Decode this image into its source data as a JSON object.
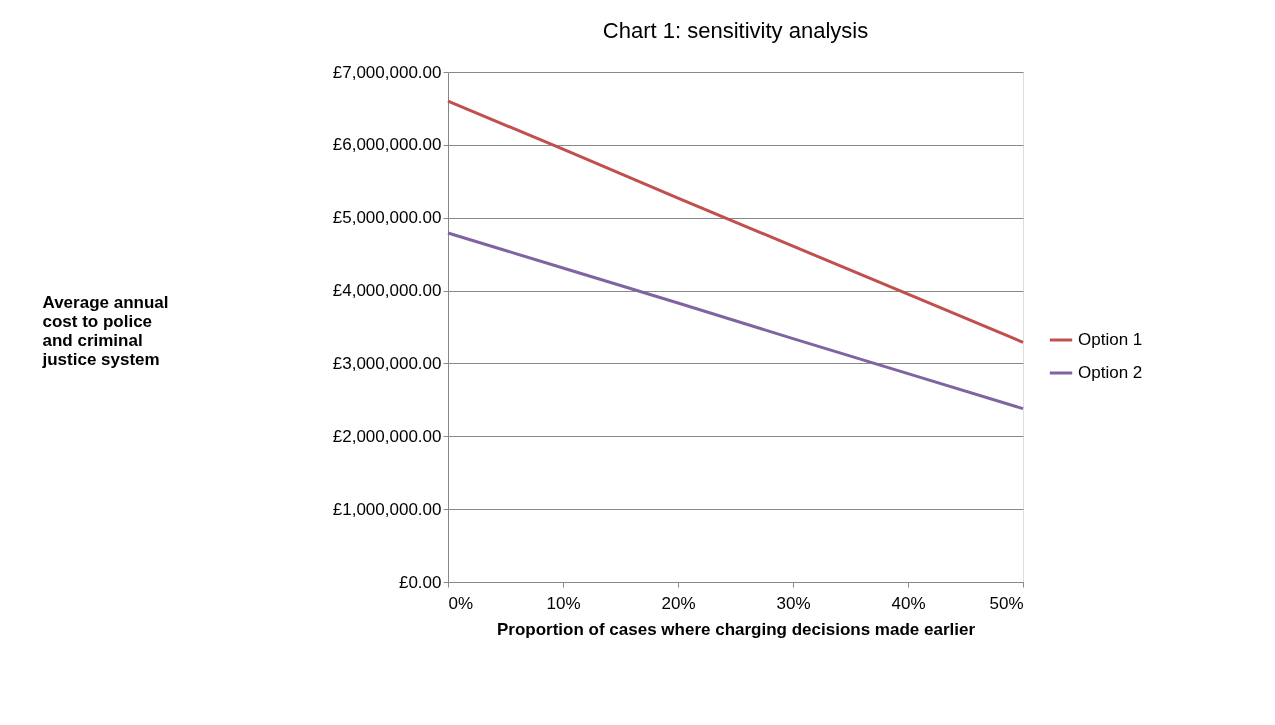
{
  "chart_data": {
    "type": "line",
    "title": "Chart 1: sensitivity analysis",
    "xlabel": "Proportion of cases where charging decisions made earlier",
    "ylabel": [
      "Average annual",
      "cost to police",
      "and criminal",
      "justice system"
    ],
    "categories": [
      "0%",
      "10%",
      "20%",
      "30%",
      "40%",
      "50%"
    ],
    "series": [
      {
        "name": "Option 1",
        "color": "#c0504d",
        "values": [
          6600000,
          5940000,
          5270000,
          4610000,
          3950000,
          3290000
        ]
      },
      {
        "name": "Option 2",
        "color": "#8064a2",
        "values": [
          4790000,
          4310000,
          3830000,
          3340000,
          2860000,
          2380000
        ]
      }
    ],
    "ylim": [
      0,
      7000000
    ],
    "yticks": [
      {
        "value": 0,
        "label": "£0.00"
      },
      {
        "value": 1000000,
        "label": "£1,000,000.00"
      },
      {
        "value": 2000000,
        "label": "£2,000,000.00"
      },
      {
        "value": 3000000,
        "label": "£3,000,000.00"
      },
      {
        "value": 4000000,
        "label": "£4,000,000.00"
      },
      {
        "value": 5000000,
        "label": "£5,000,000.00"
      },
      {
        "value": 6000000,
        "label": "£6,000,000.00"
      },
      {
        "value": 7000000,
        "label": "£7,000,000.00"
      }
    ],
    "grid": "y",
    "legend": "right",
    "marker": "none",
    "line_style": "solid"
  }
}
